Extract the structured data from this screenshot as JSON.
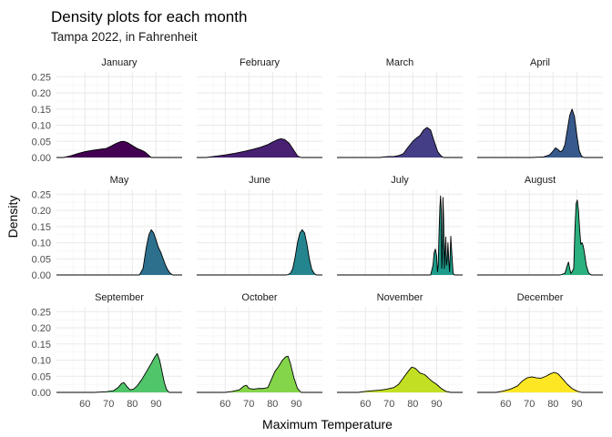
{
  "chart_data": {
    "type": "area",
    "title": "Density plots for each month",
    "subtitle": "Tampa 2022, in Fahrenheit",
    "xlabel": "Maximum Temperature",
    "ylabel": "Density",
    "xlim": [
      48,
      101
    ],
    "ylim": [
      0,
      0.265
    ],
    "x_ticks": [
      60,
      70,
      80,
      90
    ],
    "x_tick_labels": [
      "60",
      "70",
      "80",
      "90"
    ],
    "y_ticks": [
      0,
      0.05,
      0.1,
      0.15,
      0.2,
      0.25
    ],
    "y_tick_labels": [
      "0.00",
      "0.05",
      "0.10",
      "0.15",
      "0.20",
      "0.25"
    ],
    "grid": true,
    "legend": "none",
    "facets": [
      {
        "name": "January",
        "color": "#440154",
        "points": [
          [
            51,
            0
          ],
          [
            54,
            0.005
          ],
          [
            57,
            0.012
          ],
          [
            60,
            0.018
          ],
          [
            63,
            0.022
          ],
          [
            66,
            0.025
          ],
          [
            69,
            0.028
          ],
          [
            71,
            0.035
          ],
          [
            73,
            0.043
          ],
          [
            75,
            0.049
          ],
          [
            76.5,
            0.05
          ],
          [
            78,
            0.046
          ],
          [
            80,
            0.037
          ],
          [
            82,
            0.028
          ],
          [
            84,
            0.022
          ],
          [
            85.5,
            0.016
          ],
          [
            87,
            0.006
          ],
          [
            88,
            0
          ]
        ]
      },
      {
        "name": "February",
        "color": "#482173",
        "points": [
          [
            52,
            0
          ],
          [
            56,
            0.004
          ],
          [
            60,
            0.008
          ],
          [
            64,
            0.013
          ],
          [
            68,
            0.019
          ],
          [
            72,
            0.026
          ],
          [
            75,
            0.032
          ],
          [
            78,
            0.04
          ],
          [
            80,
            0.048
          ],
          [
            82,
            0.055
          ],
          [
            83.5,
            0.058
          ],
          [
            85,
            0.056
          ],
          [
            87,
            0.044
          ],
          [
            89,
            0.022
          ],
          [
            90.5,
            0.005
          ],
          [
            92,
            0
          ]
        ]
      },
      {
        "name": "March",
        "color": "#433E85",
        "points": [
          [
            66,
            0
          ],
          [
            68,
            0.002
          ],
          [
            70,
            0.003
          ],
          [
            72,
            0.003
          ],
          [
            74,
            0.006
          ],
          [
            76,
            0.012
          ],
          [
            78,
            0.032
          ],
          [
            80,
            0.05
          ],
          [
            81.5,
            0.06
          ],
          [
            83,
            0.068
          ],
          [
            84.5,
            0.085
          ],
          [
            86,
            0.093
          ],
          [
            87.5,
            0.085
          ],
          [
            89,
            0.05
          ],
          [
            90.5,
            0.018
          ],
          [
            92,
            0.004
          ],
          [
            93,
            0
          ]
        ]
      },
      {
        "name": "April",
        "color": "#38598C",
        "points": [
          [
            71,
            0
          ],
          [
            76,
            0.002
          ],
          [
            78.5,
            0.008
          ],
          [
            80,
            0.02
          ],
          [
            81,
            0.03
          ],
          [
            82,
            0.025
          ],
          [
            83,
            0.018
          ],
          [
            84,
            0.022
          ],
          [
            85,
            0.04
          ],
          [
            86,
            0.085
          ],
          [
            87,
            0.13
          ],
          [
            88,
            0.15
          ],
          [
            89,
            0.128
          ],
          [
            90,
            0.07
          ],
          [
            91,
            0.022
          ],
          [
            92,
            0.004
          ],
          [
            93,
            0
          ]
        ]
      },
      {
        "name": "May",
        "color": "#2D708E",
        "points": [
          [
            83,
            0
          ],
          [
            84.5,
            0.02
          ],
          [
            86,
            0.09
          ],
          [
            87,
            0.125
          ],
          [
            88,
            0.14
          ],
          [
            89,
            0.13
          ],
          [
            90,
            0.108
          ],
          [
            91,
            0.085
          ],
          [
            92,
            0.07
          ],
          [
            93,
            0.05
          ],
          [
            94,
            0.03
          ],
          [
            95,
            0.015
          ],
          [
            96,
            0.005
          ],
          [
            97,
            0
          ]
        ]
      },
      {
        "name": "June",
        "color": "#25858E",
        "points": [
          [
            86,
            0
          ],
          [
            87.5,
            0.005
          ],
          [
            88.5,
            0.02
          ],
          [
            89.5,
            0.055
          ],
          [
            90.5,
            0.1
          ],
          [
            91.5,
            0.13
          ],
          [
            92.5,
            0.14
          ],
          [
            93.5,
            0.13
          ],
          [
            94.5,
            0.095
          ],
          [
            95.5,
            0.05
          ],
          [
            96.5,
            0.018
          ],
          [
            97.5,
            0.005
          ],
          [
            98.5,
            0
          ]
        ]
      },
      {
        "name": "July",
        "color": "#1E9B8A",
        "points": [
          [
            87.5,
            0
          ],
          [
            88.5,
            0.03
          ],
          [
            89,
            0.07
          ],
          [
            89.5,
            0.08
          ],
          [
            90,
            0.06
          ],
          [
            90.4,
            0.01
          ],
          [
            90.7,
            0.03
          ],
          [
            91,
            0.12
          ],
          [
            91.4,
            0.21
          ],
          [
            91.7,
            0.245
          ],
          [
            92,
            0.2
          ],
          [
            92.2,
            0.02
          ],
          [
            92.4,
            0.05
          ],
          [
            92.7,
            0.24
          ],
          [
            93,
            0.17
          ],
          [
            93.3,
            0.02
          ],
          [
            93.6,
            0.08
          ],
          [
            93.9,
            0.118
          ],
          [
            94.2,
            0.03
          ],
          [
            94.5,
            0.05
          ],
          [
            94.8,
            0.1
          ],
          [
            95.2,
            0.04
          ],
          [
            95.5,
            0.01
          ],
          [
            96,
            0.12
          ],
          [
            96.5,
            0.06
          ],
          [
            97,
            0.005
          ],
          [
            97.5,
            0
          ]
        ]
      },
      {
        "name": "August",
        "color": "#2BB07F",
        "points": [
          [
            83,
            0
          ],
          [
            85,
            0.005
          ],
          [
            86,
            0.03
          ],
          [
            86.5,
            0.04
          ],
          [
            87,
            0.02
          ],
          [
            87.5,
            0.005
          ],
          [
            88,
            0.01
          ],
          [
            88.7,
            0.02
          ],
          [
            89.2,
            0.14
          ],
          [
            89.7,
            0.22
          ],
          [
            90.2,
            0.232
          ],
          [
            90.7,
            0.2
          ],
          [
            91.2,
            0.14
          ],
          [
            91.7,
            0.095
          ],
          [
            92.2,
            0.1
          ],
          [
            92.7,
            0.09
          ],
          [
            93.2,
            0.07
          ],
          [
            94,
            0.03
          ],
          [
            95,
            0.006
          ],
          [
            96,
            0
          ]
        ]
      },
      {
        "name": "September",
        "color": "#51C56A",
        "points": [
          [
            64,
            0
          ],
          [
            69,
            0.002
          ],
          [
            72,
            0.005
          ],
          [
            74,
            0.015
          ],
          [
            75.5,
            0.028
          ],
          [
            76.5,
            0.03
          ],
          [
            77.5,
            0.02
          ],
          [
            79,
            0.008
          ],
          [
            80.5,
            0.01
          ],
          [
            82,
            0.02
          ],
          [
            84,
            0.04
          ],
          [
            86,
            0.065
          ],
          [
            88,
            0.09
          ],
          [
            89.5,
            0.11
          ],
          [
            90.5,
            0.12
          ],
          [
            91.5,
            0.1
          ],
          [
            92.5,
            0.065
          ],
          [
            93.5,
            0.03
          ],
          [
            94.5,
            0.008
          ],
          [
            95.5,
            0
          ]
        ]
      },
      {
        "name": "October",
        "color": "#85D54A",
        "points": [
          [
            60,
            0
          ],
          [
            63,
            0.003
          ],
          [
            66,
            0.008
          ],
          [
            68,
            0.02
          ],
          [
            69,
            0.022
          ],
          [
            70,
            0.012
          ],
          [
            72,
            0.01
          ],
          [
            74,
            0.012
          ],
          [
            76,
            0.012
          ],
          [
            78,
            0.015
          ],
          [
            79.5,
            0.04
          ],
          [
            81,
            0.065
          ],
          [
            82.5,
            0.08
          ],
          [
            84,
            0.098
          ],
          [
            85.5,
            0.11
          ],
          [
            86.5,
            0.112
          ],
          [
            87.5,
            0.09
          ],
          [
            89,
            0.045
          ],
          [
            90.5,
            0.012
          ],
          [
            92,
            0
          ]
        ]
      },
      {
        "name": "November",
        "color": "#C2DF23",
        "points": [
          [
            57,
            0
          ],
          [
            60,
            0.003
          ],
          [
            63,
            0.005
          ],
          [
            66,
            0.007
          ],
          [
            69,
            0.01
          ],
          [
            72,
            0.015
          ],
          [
            74,
            0.025
          ],
          [
            76,
            0.045
          ],
          [
            78,
            0.065
          ],
          [
            79.5,
            0.078
          ],
          [
            81,
            0.075
          ],
          [
            83,
            0.06
          ],
          [
            85,
            0.055
          ],
          [
            86.5,
            0.045
          ],
          [
            88,
            0.035
          ],
          [
            90,
            0.025
          ],
          [
            92,
            0.012
          ],
          [
            94,
            0.003
          ],
          [
            96,
            0
          ]
        ]
      },
      {
        "name": "December",
        "color": "#FDE725",
        "points": [
          [
            56,
            0
          ],
          [
            59,
            0.004
          ],
          [
            62,
            0.01
          ],
          [
            65,
            0.02
          ],
          [
            67,
            0.035
          ],
          [
            69,
            0.045
          ],
          [
            71,
            0.048
          ],
          [
            73,
            0.045
          ],
          [
            75,
            0.044
          ],
          [
            77,
            0.05
          ],
          [
            79,
            0.058
          ],
          [
            80.5,
            0.062
          ],
          [
            82,
            0.058
          ],
          [
            84,
            0.042
          ],
          [
            86,
            0.025
          ],
          [
            88,
            0.012
          ],
          [
            90,
            0.004
          ],
          [
            92,
            0
          ]
        ]
      }
    ]
  }
}
